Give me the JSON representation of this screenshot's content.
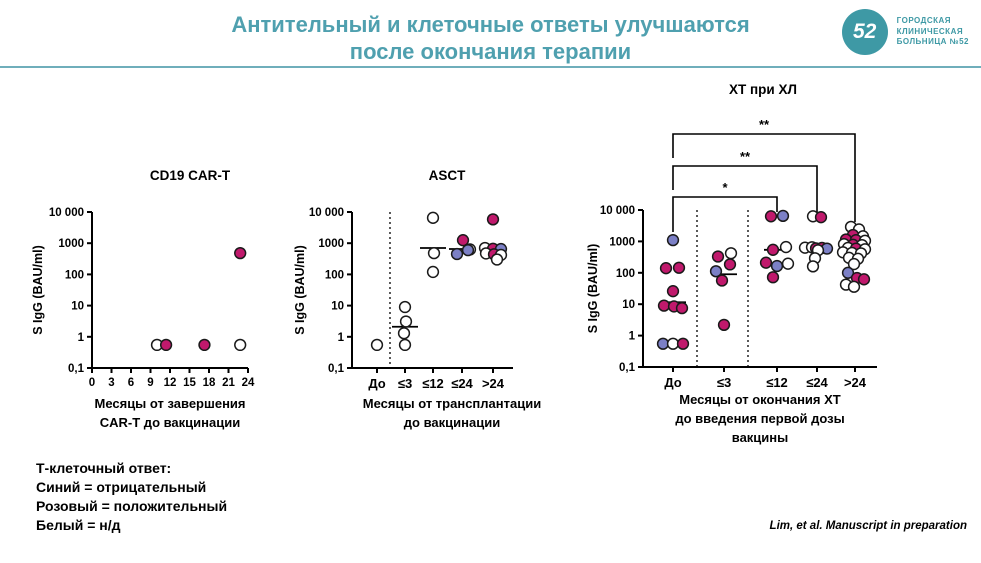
{
  "slide": {
    "title_line1": "Антительный и клеточные ответы улучшаются",
    "title_line2": "после окончания терапии",
    "title_color": "#4FA0AF",
    "rule_color": "#6FAEBB"
  },
  "logo": {
    "number": "52",
    "line1": "ГОРОДСКАЯ",
    "line2": "КЛИНИЧЕСКАЯ",
    "line3": "БОЛЬНИЦА №52",
    "color": "#3E99A5"
  },
  "legend": {
    "title": "Т-клеточный ответ:",
    "blue": "Синий = отрицательный",
    "pink": "Розовый = положительный",
    "white": "Белый = н/д"
  },
  "citation": "Lim, et al. Manuscript in preparation",
  "point_colors": {
    "pos": "#C0196C",
    "neg": "#7C80C6",
    "nd": "#FFFFFF",
    "outline": "#1A1A1A"
  },
  "chart_data": [
    {
      "type": "scatter",
      "title": "CD19 CAR-T",
      "ylabel": "S IgG (BAU/ml)",
      "xlabel_lines": [
        "Месяцы от завершения",
        "CAR-T до вакцинации"
      ],
      "yscale": "log",
      "ylim": [
        0.1,
        10000
      ],
      "ytick_labels": [
        "10 000",
        "1000",
        "100",
        "10",
        "1",
        "0,1"
      ],
      "x_mode": "numeric",
      "xlim": [
        0,
        24
      ],
      "xticks": [
        0,
        3,
        6,
        9,
        12,
        15,
        18,
        21,
        24
      ],
      "point_format": [
        "months",
        "y_bau_ml",
        "t_cell_response"
      ],
      "points": [
        [
          10.0,
          0.55,
          "nd"
        ],
        [
          11.4,
          0.55,
          "pos"
        ],
        [
          17.3,
          0.55,
          "pos"
        ],
        [
          22.8,
          0.55,
          "nd"
        ],
        [
          22.8,
          480,
          "pos"
        ]
      ]
    },
    {
      "type": "scatter",
      "title": "ASCT",
      "ylabel": "S IgG (BAU/ml)",
      "xlabel_lines": [
        "Месяцы от трансплантации",
        "до вакцинации"
      ],
      "yscale": "log",
      "ylim": [
        0.1,
        10000
      ],
      "ytick_labels": [
        "10 000",
        "1000",
        "100",
        "10",
        "1",
        "0,1"
      ],
      "x_mode": "category",
      "categories": [
        "До",
        "≤3",
        "≤12",
        "≤24",
        ">24"
      ],
      "divider_after_categories": [
        "До"
      ],
      "medians": [
        null,
        2.1,
        700,
        650,
        600
      ],
      "point_format": [
        "category_index",
        "x_jitter_px",
        "y_bau_ml",
        "t_cell_response"
      ],
      "points": [
        [
          0,
          0,
          0.55,
          "nd"
        ],
        [
          1,
          0,
          9,
          "nd"
        ],
        [
          1,
          1,
          3.1,
          "nd"
        ],
        [
          1,
          -1,
          1.3,
          "nd"
        ],
        [
          1,
          0,
          0.55,
          "nd"
        ],
        [
          2,
          0,
          6500,
          "nd"
        ],
        [
          2,
          1,
          480,
          "nd"
        ],
        [
          2,
          0,
          120,
          "nd"
        ],
        [
          3,
          1,
          1250,
          "pos"
        ],
        [
          3,
          8,
          630,
          "nd"
        ],
        [
          3,
          -5,
          450,
          "neg"
        ],
        [
          3,
          6,
          600,
          "neg"
        ],
        [
          4,
          0,
          5800,
          "pos"
        ],
        [
          4,
          -8,
          700,
          "nd"
        ],
        [
          4,
          0,
          660,
          "pos"
        ],
        [
          4,
          8,
          650,
          "neg"
        ],
        [
          4,
          -7,
          470,
          "nd"
        ],
        [
          4,
          1,
          440,
          "pos"
        ],
        [
          4,
          8,
          420,
          "nd"
        ],
        [
          4,
          4,
          300,
          "nd"
        ]
      ]
    },
    {
      "type": "scatter",
      "title": "ХТ при ХЛ",
      "ylabel": "S IgG (BAU/ml)",
      "xlabel_lines": [
        "Месяцы от окончания ХТ",
        "до введения первой дозы",
        "вакцины"
      ],
      "yscale": "log",
      "ylim": [
        0.1,
        10000
      ],
      "ytick_labels": [
        "10 000",
        "1000",
        "100",
        "10",
        "1",
        "0,1"
      ],
      "x_mode": "category",
      "categories": [
        "До",
        "≤3",
        "≤12",
        "≤24",
        ">24"
      ],
      "divider_after_categories": [
        "До",
        "≤3"
      ],
      "medians": [
        11.5,
        90,
        540,
        600,
        580
      ],
      "significance": [
        {
          "from": "До",
          "to": "≤12",
          "label": "*"
        },
        {
          "from": "До",
          "to": "≤24",
          "label": "**"
        },
        {
          "from": "До",
          "to": ">24",
          "label": "**"
        }
      ],
      "point_format": [
        "category_index",
        "x_jitter_px",
        "y_bau_ml",
        "t_cell_response"
      ],
      "points": [
        [
          0,
          0,
          1100,
          "neg"
        ],
        [
          0,
          -7,
          140,
          "pos"
        ],
        [
          0,
          6,
          145,
          "pos"
        ],
        [
          0,
          0,
          26,
          "pos"
        ],
        [
          0,
          -9,
          9,
          "pos"
        ],
        [
          0,
          1,
          8.5,
          "pos"
        ],
        [
          0,
          9,
          7.5,
          "pos"
        ],
        [
          0,
          -10,
          0.55,
          "neg"
        ],
        [
          0,
          0,
          0.55,
          "nd"
        ],
        [
          0,
          10,
          0.55,
          "pos"
        ],
        [
          1,
          -6,
          330,
          "pos"
        ],
        [
          1,
          7,
          420,
          "nd"
        ],
        [
          1,
          -8,
          112,
          "neg"
        ],
        [
          1,
          6,
          185,
          "pos"
        ],
        [
          1,
          -2,
          57,
          "pos"
        ],
        [
          1,
          0,
          2.2,
          "pos"
        ],
        [
          2,
          -6,
          6300,
          "pos"
        ],
        [
          2,
          6,
          6500,
          "neg"
        ],
        [
          2,
          -4,
          540,
          "pos"
        ],
        [
          2,
          9,
          660,
          "nd"
        ],
        [
          2,
          -11,
          210,
          "pos"
        ],
        [
          2,
          0,
          165,
          "neg"
        ],
        [
          2,
          11,
          195,
          "nd"
        ],
        [
          2,
          -4,
          72,
          "pos"
        ],
        [
          3,
          -4,
          6300,
          "nd"
        ],
        [
          3,
          4,
          5900,
          "pos"
        ],
        [
          3,
          -12,
          630,
          "nd"
        ],
        [
          3,
          -5,
          650,
          "nd"
        ],
        [
          3,
          -1,
          600,
          "pos"
        ],
        [
          3,
          5,
          620,
          "pos"
        ],
        [
          3,
          10,
          590,
          "neg"
        ],
        [
          3,
          1,
          520,
          "nd"
        ],
        [
          3,
          -2,
          290,
          "nd"
        ],
        [
          3,
          -4,
          160,
          "nd"
        ],
        [
          4,
          -4,
          2900,
          "nd"
        ],
        [
          4,
          4,
          2400,
          "nd"
        ],
        [
          4,
          -2,
          1600,
          "pos"
        ],
        [
          4,
          8,
          1450,
          "nd"
        ],
        [
          4,
          -9,
          1150,
          "pos"
        ],
        [
          4,
          1,
          1100,
          "pos"
        ],
        [
          4,
          10,
          1050,
          "nd"
        ],
        [
          4,
          -11,
          820,
          "nd"
        ],
        [
          4,
          -2,
          780,
          "pos"
        ],
        [
          4,
          7,
          760,
          "nd"
        ],
        [
          4,
          -7,
          620,
          "nd"
        ],
        [
          4,
          1,
          590,
          "pos"
        ],
        [
          4,
          10,
          560,
          "nd"
        ],
        [
          4,
          -12,
          450,
          "nd"
        ],
        [
          4,
          -3,
          430,
          "nd"
        ],
        [
          4,
          6,
          415,
          "nd"
        ],
        [
          4,
          -6,
          300,
          "nd"
        ],
        [
          4,
          3,
          280,
          "nd"
        ],
        [
          4,
          -1,
          190,
          "nd"
        ],
        [
          4,
          -7,
          100,
          "neg"
        ],
        [
          4,
          2,
          68,
          "pos"
        ],
        [
          4,
          9,
          62,
          "pos"
        ],
        [
          4,
          -9,
          42,
          "nd"
        ],
        [
          4,
          -1,
          36,
          "nd"
        ]
      ]
    }
  ]
}
